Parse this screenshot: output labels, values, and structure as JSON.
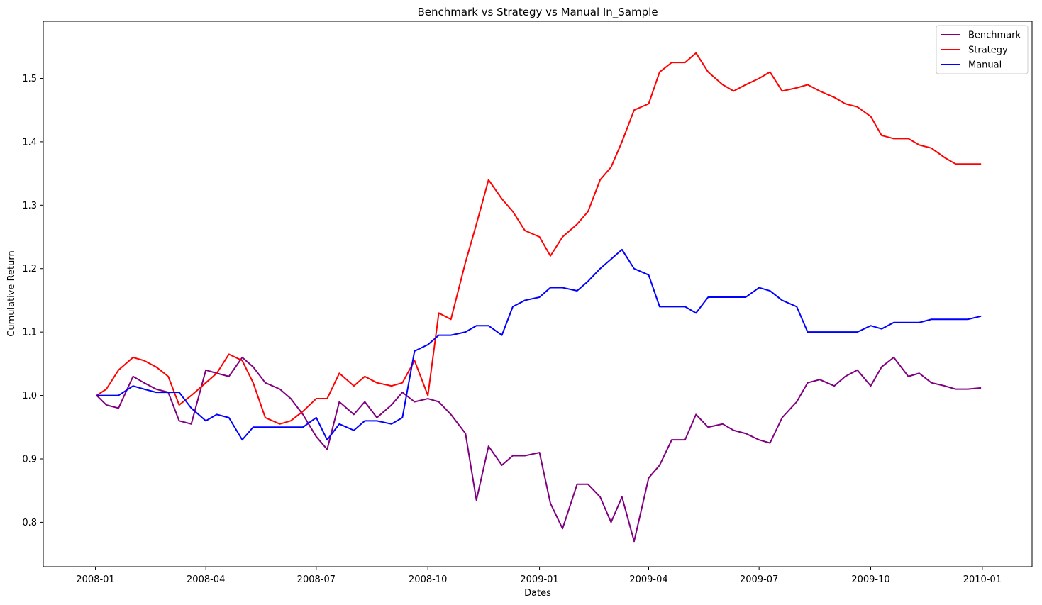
{
  "chart_data": {
    "type": "line",
    "title": "Benchmark vs Strategy vs Manual In_Sample",
    "xlabel": "Dates",
    "ylabel": "Cumulative Return",
    "x_ticks": [
      "2008-01",
      "2008-04",
      "2008-07",
      "2008-10",
      "2009-01",
      "2009-04",
      "2009-07",
      "2009-10",
      "2010-01"
    ],
    "y_ticks": [
      "0.8",
      "0.9",
      "1.0",
      "1.1",
      "1.2",
      "1.3",
      "1.4",
      "1.5"
    ],
    "xlim": [
      "2007-11-19",
      "2010-02-11"
    ],
    "ylim": [
      0.73,
      1.59
    ],
    "grid": false,
    "legend_position": "top-right",
    "x": [
      "2008-01-02",
      "2008-01-10",
      "2008-01-20",
      "2008-02-01",
      "2008-02-10",
      "2008-02-20",
      "2008-03-01",
      "2008-03-10",
      "2008-03-20",
      "2008-04-01",
      "2008-04-10",
      "2008-04-20",
      "2008-05-01",
      "2008-05-10",
      "2008-05-20",
      "2008-06-01",
      "2008-06-10",
      "2008-06-20",
      "2008-07-01",
      "2008-07-10",
      "2008-07-20",
      "2008-08-01",
      "2008-08-10",
      "2008-08-20",
      "2008-09-01",
      "2008-09-10",
      "2008-09-20",
      "2008-10-01",
      "2008-10-10",
      "2008-10-20",
      "2008-11-01",
      "2008-11-10",
      "2008-11-20",
      "2008-12-01",
      "2008-12-10",
      "2008-12-20",
      "2009-01-01",
      "2009-01-10",
      "2009-01-20",
      "2009-02-01",
      "2009-02-10",
      "2009-02-20",
      "2009-03-01",
      "2009-03-10",
      "2009-03-20",
      "2009-04-01",
      "2009-04-10",
      "2009-04-20",
      "2009-05-01",
      "2009-05-10",
      "2009-05-20",
      "2009-06-01",
      "2009-06-10",
      "2009-06-20",
      "2009-07-01",
      "2009-07-10",
      "2009-07-20",
      "2009-08-01",
      "2009-08-10",
      "2009-08-20",
      "2009-09-01",
      "2009-09-10",
      "2009-09-20",
      "2009-10-01",
      "2009-10-10",
      "2009-10-20",
      "2009-11-01",
      "2009-11-10",
      "2009-11-20",
      "2009-12-01",
      "2009-12-10",
      "2009-12-20",
      "2009-12-31"
    ],
    "series": [
      {
        "name": "Benchmark",
        "color": "#800080",
        "values": [
          1.0,
          0.985,
          0.98,
          1.03,
          1.02,
          1.01,
          1.005,
          0.96,
          0.955,
          1.04,
          1.035,
          1.03,
          1.06,
          1.045,
          1.02,
          1.01,
          0.995,
          0.97,
          0.935,
          0.915,
          0.99,
          0.97,
          0.99,
          0.965,
          0.985,
          1.005,
          0.99,
          0.995,
          0.99,
          0.97,
          0.94,
          0.835,
          0.92,
          0.89,
          0.905,
          0.905,
          0.91,
          0.83,
          0.79,
          0.86,
          0.86,
          0.84,
          0.8,
          0.84,
          0.77,
          0.87,
          0.89,
          0.93,
          0.93,
          0.97,
          0.95,
          0.955,
          0.945,
          0.94,
          0.93,
          0.925,
          0.965,
          0.99,
          1.02,
          1.025,
          1.015,
          1.03,
          1.04,
          1.015,
          1.045,
          1.06,
          1.03,
          1.035,
          1.02,
          1.015,
          1.01,
          1.01,
          1.012
        ]
      },
      {
        "name": "Strategy",
        "color": "#ff0000",
        "values": [
          1.0,
          1.01,
          1.04,
          1.06,
          1.055,
          1.045,
          1.03,
          0.985,
          1.0,
          1.02,
          1.035,
          1.065,
          1.055,
          1.02,
          0.965,
          0.955,
          0.96,
          0.975,
          0.995,
          0.995,
          1.035,
          1.015,
          1.03,
          1.02,
          1.015,
          1.02,
          1.055,
          1.0,
          1.13,
          1.12,
          1.21,
          1.27,
          1.34,
          1.31,
          1.29,
          1.26,
          1.25,
          1.22,
          1.25,
          1.27,
          1.29,
          1.34,
          1.36,
          1.4,
          1.45,
          1.46,
          1.51,
          1.525,
          1.525,
          1.54,
          1.51,
          1.49,
          1.48,
          1.49,
          1.5,
          1.51,
          1.48,
          1.485,
          1.49,
          1.48,
          1.47,
          1.46,
          1.455,
          1.44,
          1.41,
          1.405,
          1.405,
          1.395,
          1.39,
          1.375,
          1.365,
          1.365,
          1.365
        ]
      },
      {
        "name": "Manual",
        "color": "#0000ff",
        "values": [
          1.0,
          1.0,
          1.0,
          1.015,
          1.01,
          1.005,
          1.005,
          1.005,
          0.98,
          0.96,
          0.97,
          0.965,
          0.93,
          0.95,
          0.95,
          0.95,
          0.95,
          0.95,
          0.965,
          0.93,
          0.955,
          0.945,
          0.96,
          0.96,
          0.955,
          0.965,
          1.07,
          1.08,
          1.095,
          1.095,
          1.1,
          1.11,
          1.11,
          1.095,
          1.14,
          1.15,
          1.155,
          1.17,
          1.17,
          1.165,
          1.18,
          1.2,
          1.215,
          1.23,
          1.2,
          1.19,
          1.14,
          1.14,
          1.14,
          1.13,
          1.155,
          1.155,
          1.155,
          1.155,
          1.17,
          1.165,
          1.15,
          1.14,
          1.1,
          1.1,
          1.1,
          1.1,
          1.1,
          1.11,
          1.105,
          1.115,
          1.115,
          1.115,
          1.12,
          1.12,
          1.12,
          1.12,
          1.125
        ]
      }
    ]
  }
}
